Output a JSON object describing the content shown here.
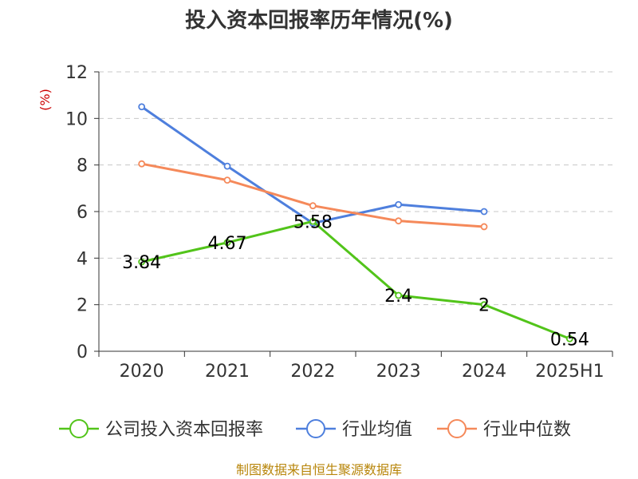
{
  "chart_data": {
    "type": "line",
    "title": "投入资本回报率历年情况(%)",
    "ylabel": "(%)",
    "categories": [
      "2020",
      "2021",
      "2022",
      "2023",
      "2024",
      "2025H1"
    ],
    "ylim": [
      0,
      12
    ],
    "yticks": [
      0,
      2,
      4,
      6,
      8,
      10,
      12
    ],
    "grid": true,
    "legend_position": "bottom",
    "series": [
      {
        "name": "公司投入资本回报率",
        "color": "#52c41a",
        "values": [
          3.84,
          4.67,
          5.58,
          2.4,
          2,
          0.54
        ],
        "labels": [
          "3.84",
          "4.67",
          "5.58",
          "2.4",
          "2",
          "0.54"
        ]
      },
      {
        "name": "行业均值",
        "color": "#4e7fdd",
        "values": [
          10.5,
          7.95,
          5.5,
          6.3,
          6.0,
          null
        ],
        "labels": []
      },
      {
        "name": "行业中位数",
        "color": "#f5895a",
        "values": [
          8.05,
          7.35,
          6.25,
          5.6,
          5.35,
          null
        ],
        "labels": []
      }
    ]
  },
  "source": "制图数据来自恒生聚源数据库"
}
